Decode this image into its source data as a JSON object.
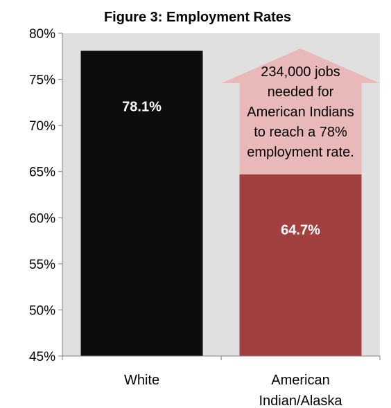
{
  "chart_data": {
    "type": "bar",
    "title": "Figure 3: Employment Rates",
    "categories": [
      "White",
      "American Indian/Alaska"
    ],
    "category_lines": [
      [
        "White"
      ],
      [
        "American",
        "Indian/Alaska"
      ]
    ],
    "values": [
      78.1,
      64.7
    ],
    "data_labels": [
      "78.1%",
      "64.7%"
    ],
    "bar_colors": [
      "#0d0d0d",
      "#a1403e"
    ],
    "plot_background": "#e0e0e0",
    "ylim": [
      45,
      80
    ],
    "ytick_values": [
      45,
      50,
      55,
      60,
      65,
      70,
      75,
      80
    ],
    "ytick_labels": [
      "45%",
      "50%",
      "55%",
      "60%",
      "65%",
      "70%",
      "75%",
      "80%"
    ],
    "xlabel": "",
    "ylabel": "",
    "grid": false,
    "annotation": {
      "type": "arrow",
      "from_value": 64.7,
      "to_value": 80,
      "color": "#e9b8b8",
      "lines": [
        "234,000 jobs",
        "needed for",
        "American Indians",
        "to reach a 78%",
        "employment rate."
      ]
    }
  }
}
